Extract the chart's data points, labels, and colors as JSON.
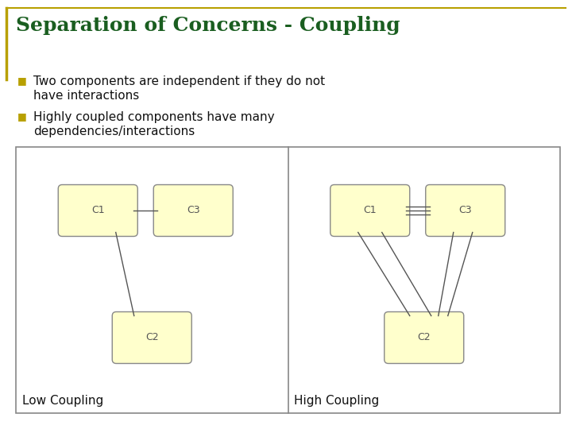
{
  "title": "Separation of Concerns - Coupling",
  "title_color": "#1a5e20",
  "title_fontsize": 18,
  "title_border_color": "#b8a000",
  "bullet_color": "#b8a000",
  "bullet1_line1": "Two components are independent if they do not",
  "bullet1_line2": "have interactions",
  "bullet2_line1": "Highly coupled components have many",
  "bullet2_line2": "dependencies/interactions",
  "text_color": "#111111",
  "text_fontsize": 11,
  "bg_color": "#ffffff",
  "diagram_bg": "#ffffff",
  "box_fill": "#ffffcc",
  "box_edge": "#888888",
  "box_label_color": "#555555",
  "diagram_border": "#888888",
  "divider_color": "#888888",
  "label_low": "Low Coupling",
  "label_high": "High Coupling",
  "label_fontsize": 11,
  "line_color": "#555555"
}
